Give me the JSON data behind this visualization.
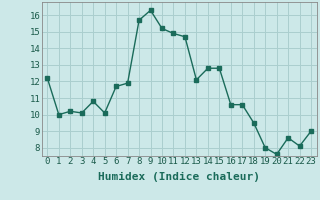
{
  "x": [
    0,
    1,
    2,
    3,
    4,
    5,
    6,
    7,
    8,
    9,
    10,
    11,
    12,
    13,
    14,
    15,
    16,
    17,
    18,
    19,
    20,
    21,
    22,
    23
  ],
  "y": [
    12.2,
    10.0,
    10.2,
    10.1,
    10.8,
    10.1,
    11.7,
    11.9,
    15.7,
    16.3,
    15.2,
    14.9,
    14.7,
    12.1,
    12.8,
    12.8,
    10.6,
    10.6,
    9.5,
    8.0,
    7.6,
    8.6,
    8.1,
    9.0
  ],
  "line_color": "#1a6b5a",
  "bg_color": "#cce8e8",
  "grid_color": "#aacece",
  "xlabel": "Humidex (Indice chaleur)",
  "ylim": [
    7.5,
    16.8
  ],
  "xlim": [
    -0.5,
    23.5
  ],
  "yticks": [
    8,
    9,
    10,
    11,
    12,
    13,
    14,
    15,
    16
  ],
  "xticks": [
    0,
    1,
    2,
    3,
    4,
    5,
    6,
    7,
    8,
    9,
    10,
    11,
    12,
    13,
    14,
    15,
    16,
    17,
    18,
    19,
    20,
    21,
    22,
    23
  ],
  "xlabel_fontsize": 8,
  "tick_fontsize": 6.5,
  "marker_size": 2.5,
  "line_width": 1.0
}
